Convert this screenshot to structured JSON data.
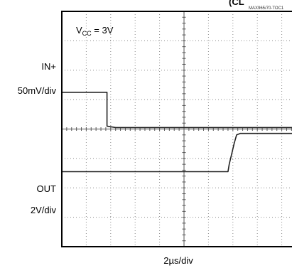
{
  "header": {
    "title_fragment": "(CL",
    "figure_code": "MAX965/70-TOC1"
  },
  "chart_data": {
    "type": "line",
    "title": "",
    "annotation": {
      "main": "V",
      "sub": "CC",
      "suffix": " = 3V"
    },
    "xlabel": "2µs/div",
    "x_unit": "div",
    "y_unit": "div",
    "divisions": {
      "x": 10,
      "y": 8
    },
    "grid": true,
    "series": [
      {
        "name": "IN+",
        "scale": "50mV/div",
        "color": "#222222",
        "points": [
          [
            0,
            2.75
          ],
          [
            1.85,
            2.75
          ],
          [
            1.85,
            3.9
          ],
          [
            2.2,
            3.95
          ],
          [
            10,
            3.95
          ]
        ]
      },
      {
        "name": "OUT",
        "scale": "2V/div",
        "color": "#222222",
        "points": [
          [
            0,
            5.45
          ],
          [
            6.8,
            5.45
          ],
          [
            6.85,
            5.2
          ],
          [
            6.95,
            4.85
          ],
          [
            7.05,
            4.5
          ],
          [
            7.15,
            4.2
          ],
          [
            7.3,
            4.15
          ],
          [
            10,
            4.15
          ]
        ]
      }
    ],
    "labels": {
      "in_name": "IN+",
      "in_scale": "50mV/div",
      "out_name": "OUT",
      "out_scale": "2V/div"
    }
  }
}
